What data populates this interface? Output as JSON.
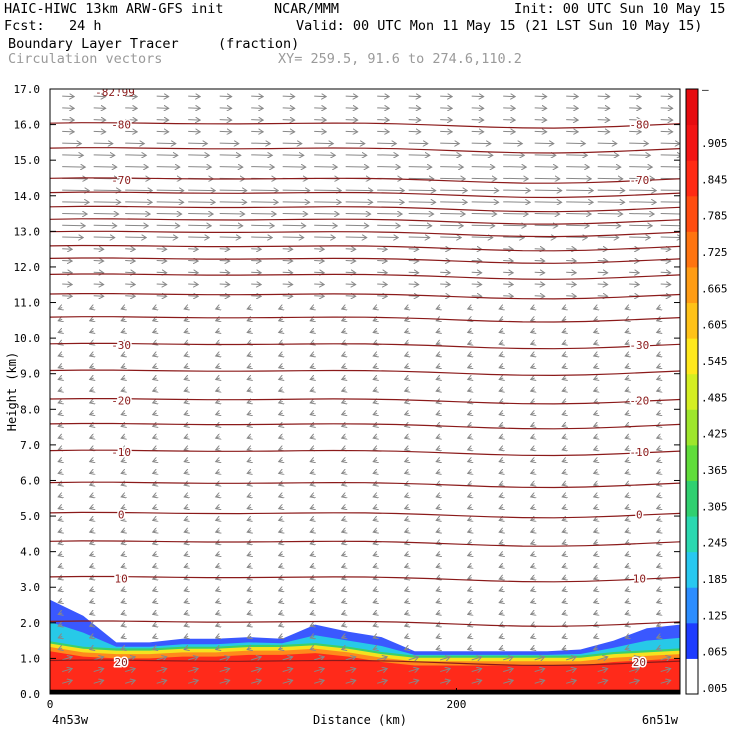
{
  "header": {
    "model": "HAIC-HIWC 13km ARW-GFS init",
    "org": "NCAR/MMM",
    "init": "Init: 00 UTC Sun 10 May 15",
    "fcst": "Fcst:   24 h",
    "valid": "Valid: 00 UTC Mon 11 May 15 (21 LST Sun 10 May 15)",
    "field": "Boundary Layer Tracer",
    "field_units": "(fraction)",
    "vectors": "Circulation vectors",
    "xsec": "XY= 259.5, 91.6 to 274.6,110.2"
  },
  "chart_data": {
    "type": "cross-section",
    "ylabel": "Height (km)",
    "xlabel": "Distance (km)",
    "ylim": [
      0,
      17
    ],
    "xlim": [
      0,
      310
    ],
    "y_ticks": [
      "0.0",
      "1.0",
      "2.0",
      "3.0",
      "4.0",
      "5.0",
      "6.0",
      "7.0",
      "8.0",
      "9.0",
      "10.0",
      "11.0",
      "12.0",
      "13.0",
      "14.0",
      "15.0",
      "16.0",
      "17.0"
    ],
    "x_ticks": [
      {
        "value": 0,
        "label": "0"
      },
      {
        "value": 200,
        "label": "200"
      }
    ],
    "x_end_labels": [
      "4n53w",
      "6n51w"
    ],
    "temperature_contours": [
      {
        "label": "-80",
        "height": 16.0
      },
      {
        "label": "-70",
        "height": 14.45
      },
      {
        "label": "-30",
        "height": 9.8
      },
      {
        "label": "-20",
        "height": 8.25
      },
      {
        "label": "-10",
        "height": 6.8
      },
      {
        "label": "0",
        "height": 5.05
      },
      {
        "label": "10",
        "height": 3.25
      },
      {
        "label": "20",
        "height": 0.9
      }
    ],
    "extra_contour_heights": [
      15.3,
      14.05,
      13.65,
      13.3,
      12.95,
      12.55,
      12.2,
      11.75,
      11.2,
      10.55,
      9.05,
      7.55,
      5.9,
      4.25,
      2.0
    ],
    "min_label": "-82.99",
    "colorbar_labels": [
      ".905",
      ".845",
      ".785",
      ".725",
      ".665",
      ".605",
      ".545",
      ".485",
      ".425",
      ".365",
      ".305",
      ".245",
      ".185",
      ".125",
      ".065",
      ".005"
    ],
    "colorbar_top_label": "–",
    "tracer_top_km": [
      2.65,
      2.2,
      1.45,
      1.45,
      1.55,
      1.55,
      1.6,
      1.55,
      1.95,
      1.75,
      1.6,
      1.2,
      1.2,
      1.2,
      1.2,
      1.2,
      1.25,
      1.5,
      1.85,
      1.95
    ],
    "tracer_full_km": [
      1.4,
      1.25,
      1.2,
      1.2,
      1.25,
      1.25,
      1.3,
      1.3,
      1.35,
      1.25,
      1.1,
      1.0,
      1.0,
      1.0,
      1.0,
      1.0,
      1.0,
      1.1,
      1.15,
      1.2
    ],
    "colors": {
      "contour": "#8b1a1a",
      "vector": "#888888",
      "axis": "#000000"
    }
  }
}
